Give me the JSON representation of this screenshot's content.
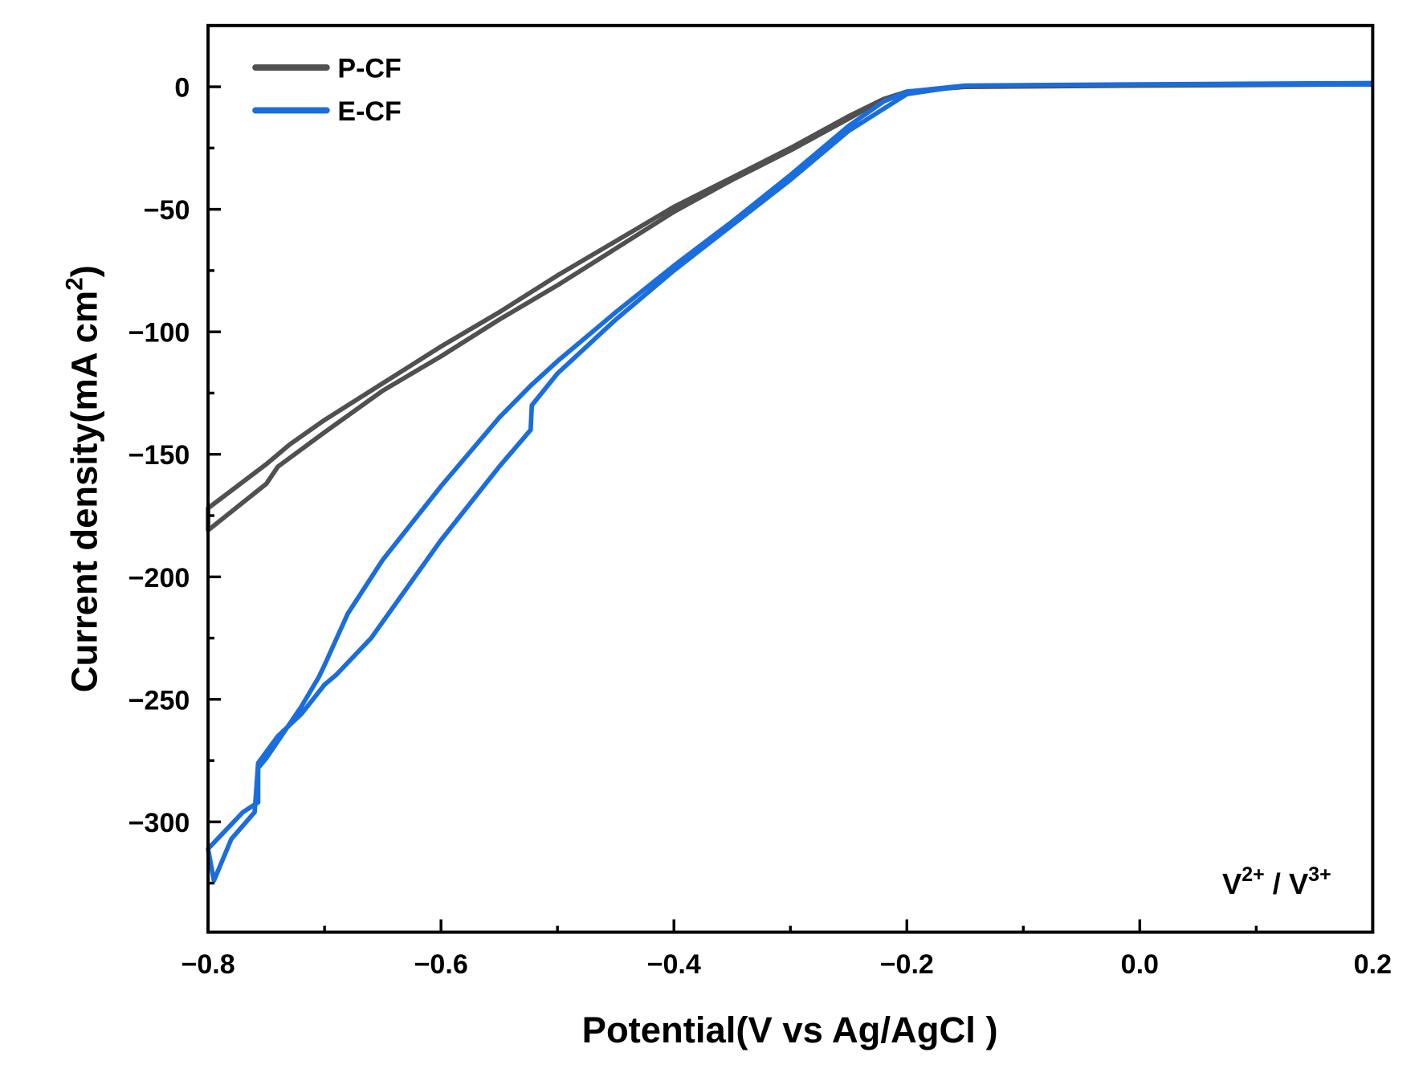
{
  "chart_data": {
    "type": "line",
    "xlabel": "Potential(V vs Ag/AgCl )",
    "ylabel_main": "Current density(mA cm",
    "ylabel_sup": "2",
    "ylabel_end": ")",
    "xlim": [
      -0.8,
      0.2
    ],
    "ylim": [
      -345,
      25
    ],
    "xticks": [
      -0.8,
      -0.6,
      -0.4,
      -0.2,
      0.0,
      0.2
    ],
    "xtick_labels": [
      "−0.8",
      "−0.6",
      "−0.4",
      "−0.2",
      "0.0",
      "0.2"
    ],
    "yticks": [
      0,
      -50,
      -100,
      -150,
      -200,
      -250,
      -300
    ],
    "ytick_labels": [
      "0",
      "−50",
      "−100",
      "−150",
      "−200",
      "−250",
      "−300"
    ],
    "grid": false,
    "legend_position": "top-left",
    "annotation": {
      "base": "V",
      "sup1": "2+",
      "sep": " / V",
      "sup2": "3+"
    },
    "series": [
      {
        "name": "P-CF",
        "color": "#505050",
        "points": [
          [
            0.2,
            1
          ],
          [
            0,
            0.5
          ],
          [
            -0.15,
            0
          ],
          [
            -0.2,
            -2
          ],
          [
            -0.22,
            -5
          ],
          [
            -0.25,
            -12
          ],
          [
            -0.3,
            -25
          ],
          [
            -0.35,
            -37
          ],
          [
            -0.4,
            -49
          ],
          [
            -0.45,
            -63
          ],
          [
            -0.5,
            -77
          ],
          [
            -0.55,
            -92
          ],
          [
            -0.6,
            -106
          ],
          [
            -0.65,
            -121
          ],
          [
            -0.7,
            -136
          ],
          [
            -0.73,
            -146
          ],
          [
            -0.75,
            -154
          ],
          [
            -0.8,
            -172
          ],
          [
            -0.8,
            -181
          ],
          [
            -0.75,
            -162
          ],
          [
            -0.74,
            -155
          ],
          [
            -0.7,
            -141
          ],
          [
            -0.65,
            -124
          ],
          [
            -0.6,
            -110
          ],
          [
            -0.55,
            -95
          ],
          [
            -0.5,
            -81
          ],
          [
            -0.45,
            -66
          ],
          [
            -0.4,
            -51
          ],
          [
            -0.35,
            -38
          ],
          [
            -0.3,
            -26
          ],
          [
            -0.25,
            -13
          ],
          [
            -0.22,
            -5
          ],
          [
            -0.2,
            -2
          ],
          [
            -0.15,
            0
          ],
          [
            0,
            0.5
          ],
          [
            0.2,
            1
          ]
        ]
      },
      {
        "name": "E-CF",
        "color": "#1a6ddd",
        "points": [
          [
            0.2,
            1
          ],
          [
            0,
            1
          ],
          [
            -0.15,
            0.5
          ],
          [
            -0.2,
            -2
          ],
          [
            -0.22,
            -6
          ],
          [
            -0.25,
            -16
          ],
          [
            -0.3,
            -36
          ],
          [
            -0.35,
            -55
          ],
          [
            -0.4,
            -73
          ],
          [
            -0.45,
            -92
          ],
          [
            -0.48,
            -104
          ],
          [
            -0.5,
            -112
          ],
          [
            -0.523,
            -122
          ],
          [
            -0.55,
            -135
          ],
          [
            -0.6,
            -163
          ],
          [
            -0.65,
            -193
          ],
          [
            -0.68,
            -215
          ],
          [
            -0.7,
            -236
          ],
          [
            -0.705,
            -241
          ],
          [
            -0.72,
            -253
          ],
          [
            -0.75,
            -274
          ],
          [
            -0.757,
            -278
          ],
          [
            -0.757,
            -292
          ],
          [
            -0.77,
            -296
          ],
          [
            -0.8,
            -311
          ],
          [
            -0.795,
            -324
          ],
          [
            -0.78,
            -307
          ],
          [
            -0.76,
            -296
          ],
          [
            -0.757,
            -276
          ],
          [
            -0.74,
            -265
          ],
          [
            -0.72,
            -256
          ],
          [
            -0.7,
            -244
          ],
          [
            -0.69,
            -240
          ],
          [
            -0.66,
            -225
          ],
          [
            -0.6,
            -185
          ],
          [
            -0.55,
            -155
          ],
          [
            -0.523,
            -140
          ],
          [
            -0.522,
            -130
          ],
          [
            -0.5,
            -117
          ],
          [
            -0.45,
            -95
          ],
          [
            -0.4,
            -75
          ],
          [
            -0.3,
            -38
          ],
          [
            -0.25,
            -18
          ],
          [
            -0.2,
            -3
          ],
          [
            -0.15,
            0.5
          ],
          [
            0,
            1
          ],
          [
            0.2,
            1.5
          ]
        ]
      }
    ]
  }
}
